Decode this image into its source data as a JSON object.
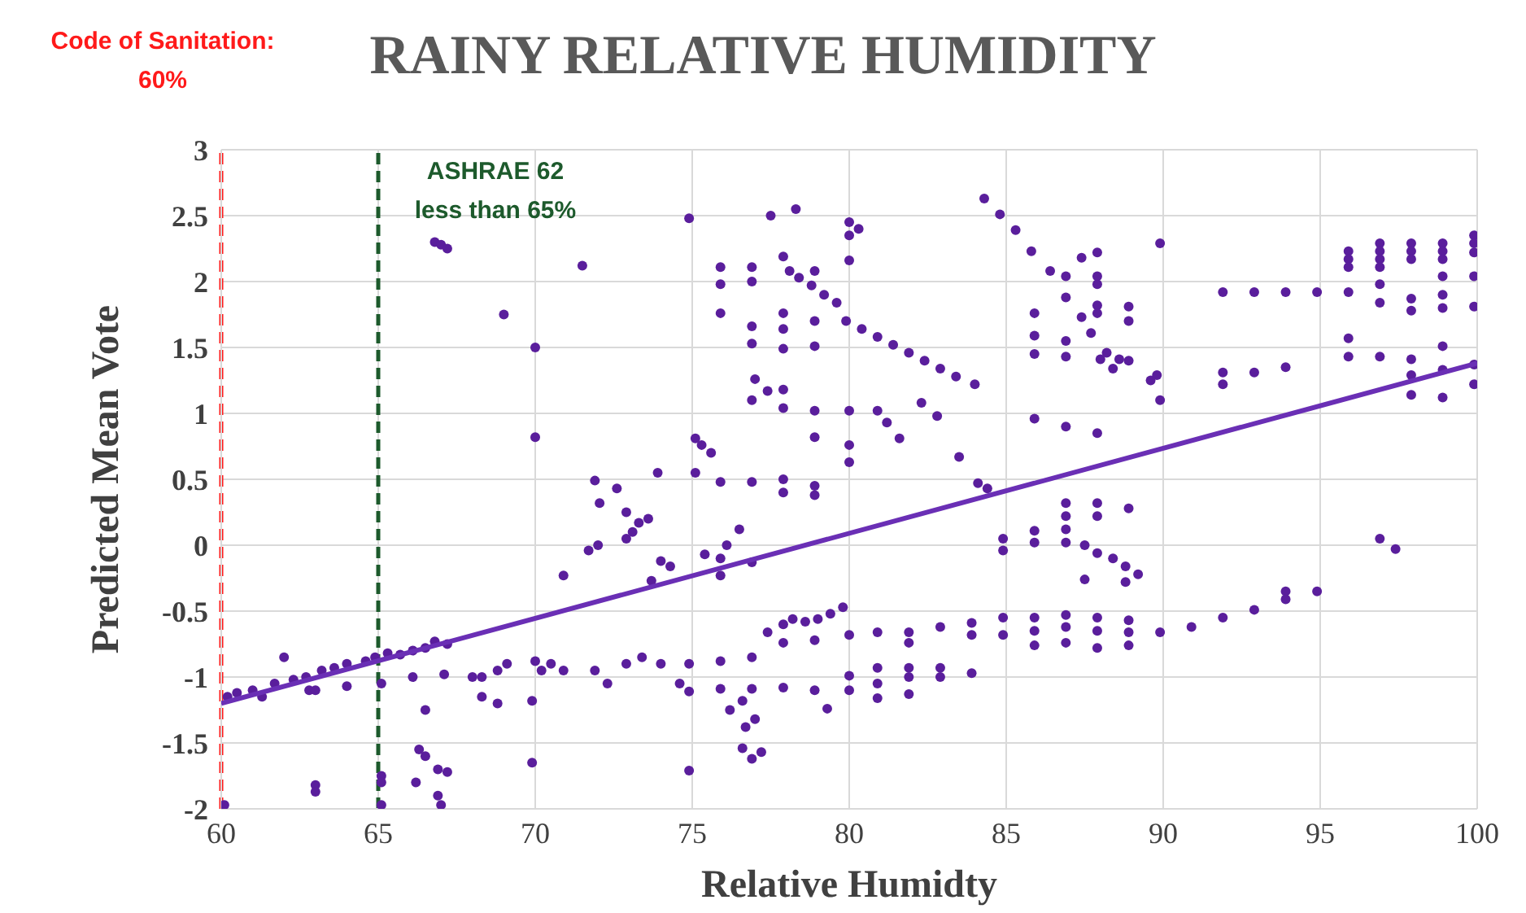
{
  "chart_data": {
    "type": "scatter",
    "title": "RAINY RELATIVE HUMIDITY",
    "xlabel": "Relative Humidty",
    "ylabel": "Predicted Mean Vote",
    "xlim": [
      60,
      100
    ],
    "xticks": [
      60,
      65,
      70,
      75,
      80,
      85,
      90,
      95,
      100
    ],
    "ylim": [
      -2,
      3
    ],
    "yticks": [
      -2,
      -1.5,
      -1,
      -0.5,
      0,
      0.5,
      1,
      1.5,
      2,
      2.5,
      3
    ],
    "grid": true,
    "ref_lines": [
      {
        "axis": "x",
        "value": 60,
        "label": "Code of Sanitation: 60%",
        "color": "#ff1a1a",
        "line_style": "dashed"
      },
      {
        "axis": "x",
        "value": 65,
        "label": "ASHRAE 62 less than 65%",
        "color": "#1d5a2c",
        "line_style": "dashed"
      }
    ],
    "series": [
      {
        "marker": "circle",
        "color": "#5a1e9c",
        "x": [
          60.2,
          60.5,
          61,
          61.3,
          61.7,
          62,
          62.3,
          62.7,
          62.8,
          63.2,
          63.6,
          64,
          64.6,
          64.9,
          65.3,
          65.7,
          66.1,
          66.5,
          66.8,
          67.2,
          63,
          64,
          65.1,
          66.1,
          67.1,
          66.5,
          66.3,
          66.5,
          66.9,
          67.2,
          66.2,
          66.9,
          67,
          63,
          63,
          65.1,
          65.1,
          65.1,
          60.1,
          66.8,
          67,
          67.2,
          69,
          70,
          70,
          71.5,
          70.9,
          71.9,
          72.05,
          72.6,
          72.9,
          71.7,
          72,
          72.9,
          73.1,
          68,
          68.3,
          68.3,
          68.8,
          68.8,
          69.1,
          70,
          69.9,
          70.2,
          70.5,
          69.9,
          70.9,
          71.9,
          72.3,
          72.9,
          74.9,
          77.5,
          78.3,
          75.9,
          75.9,
          75.9,
          76.9,
          76.9,
          76.9,
          76.9,
          76.9,
          77.9,
          77.9,
          77.9,
          77.9,
          77.9,
          78.9,
          78.9,
          78.9,
          78.9,
          78.9,
          78.1,
          78.4,
          78.8,
          79.2,
          79.6,
          79.9,
          80.4,
          80.9,
          81.4,
          81.9,
          82.4,
          82.9,
          83.4,
          84,
          80,
          80,
          80,
          80.3,
          80,
          80,
          80,
          77,
          77.4,
          77.9,
          80.9,
          81.2,
          81.6,
          82.3,
          82.8,
          83.5,
          84.1,
          84.4,
          75.1,
          75.3,
          75.6,
          75.1,
          73.9,
          75.9,
          76.9,
          77.9,
          77.9,
          78.9,
          78.9,
          73.3,
          73.6,
          74,
          74.3,
          73.7,
          75.4,
          75.9,
          76.1,
          76.5,
          75.9,
          76.9,
          73.4,
          74,
          74.6,
          74.9,
          74.9,
          75.9,
          75.9,
          76.2,
          76.9,
          76.9,
          76.6,
          77,
          76.7,
          76.6,
          77.2,
          76.9,
          74.9,
          77.4,
          77.9,
          78.2,
          78.6,
          79,
          79.4,
          79.8,
          77.9,
          77.9,
          78.9,
          78.9,
          79.3,
          80,
          80,
          80,
          80.9,
          80.9,
          80.9,
          80.9,
          81.9,
          81.9,
          81.9,
          81.9,
          81.9,
          82.9,
          82.9,
          82.9,
          83.9,
          83.9,
          83.9,
          84.9,
          84.9,
          85.9,
          85.9,
          85.9,
          84.9,
          84.9,
          85.9,
          85.9,
          84.3,
          84.8,
          85.3,
          85.8,
          86.4,
          86.9,
          87.4,
          87.7,
          85.9,
          85.9,
          85.9,
          85.9,
          86.9,
          86.9,
          86.9,
          86.9,
          87.9,
          87.9,
          87.9,
          87.9,
          87.9,
          87.9,
          87.4,
          88,
          88.2,
          88.4,
          88.6,
          88.9,
          88.9,
          88.9,
          89.8,
          89.9,
          89.9,
          89.6,
          91.9,
          92.9,
          93.9,
          94.9,
          91.9,
          91.9,
          92.9,
          93.9,
          95.9,
          95.9,
          95.9,
          95.9,
          95.9,
          95.9,
          96.9,
          96.9,
          96.9,
          96.9,
          96.9,
          96.9,
          96.9,
          97.9,
          97.9,
          97.9,
          97.9,
          97.9,
          97.9,
          97.9,
          97.9,
          98.9,
          98.9,
          98.9,
          98.9,
          98.9,
          98.9,
          98.9,
          98.9,
          98.9,
          99.9,
          99.9,
          99.9,
          99.9,
          99.9,
          99.9,
          99.9,
          86.9,
          86.9,
          86.9,
          86.9,
          87.9,
          87.9,
          88.9,
          87.5,
          87.9,
          88.4,
          88.8,
          89.2,
          87.5,
          88.8,
          96.9,
          97.4,
          86.9,
          86.9,
          86.9,
          87.9,
          87.9,
          87.9,
          88.9,
          88.9,
          88.9,
          89.9,
          90.9,
          91.9,
          92.9,
          93.9,
          93.9,
          94.9
        ],
        "values": [
          -1.15,
          -1.12,
          -1.1,
          -1.15,
          -1.05,
          -0.85,
          -1.02,
          -1,
          -1.1,
          -0.95,
          -0.93,
          -0.9,
          -0.88,
          -0.85,
          -0.82,
          -0.83,
          -0.8,
          -0.78,
          -0.73,
          -0.75,
          -1.1,
          -1.07,
          -1.05,
          -1,
          -0.98,
          -1.25,
          -1.55,
          -1.6,
          -1.7,
          -1.72,
          -1.8,
          -1.9,
          -1.97,
          -1.82,
          -1.87,
          -1.75,
          -1.8,
          -1.97,
          -1.97,
          2.3,
          2.28,
          2.25,
          1.75,
          1.5,
          0.82,
          2.12,
          -0.23,
          0.49,
          0.32,
          0.43,
          0.25,
          -0.04,
          0,
          0.05,
          0.1,
          -1,
          -1,
          -1.15,
          -0.95,
          -1.2,
          -0.9,
          -0.88,
          -1.18,
          -0.95,
          -0.9,
          -1.65,
          -0.95,
          -0.95,
          -1.05,
          -0.9,
          2.48,
          2.5,
          2.55,
          2.11,
          1.98,
          1.76,
          2.11,
          2,
          1.66,
          1.53,
          1.1,
          2.19,
          1.76,
          1.64,
          1.49,
          1.04,
          2.08,
          1.7,
          1.51,
          1.02,
          0.82,
          2.08,
          2.03,
          1.97,
          1.9,
          1.84,
          1.7,
          1.64,
          1.58,
          1.52,
          1.46,
          1.4,
          1.34,
          1.28,
          1.22,
          2.45,
          2.35,
          2.16,
          2.4,
          1.02,
          0.76,
          0.63,
          1.26,
          1.17,
          1.18,
          1.02,
          0.93,
          0.81,
          1.08,
          0.98,
          0.67,
          0.47,
          0.43,
          0.81,
          0.76,
          0.7,
          0.55,
          0.55,
          0.48,
          0.48,
          0.5,
          0.4,
          0.45,
          0.38,
          0.17,
          0.2,
          -0.12,
          -0.16,
          -0.27,
          -0.07,
          -0.1,
          0,
          0.12,
          -0.23,
          -0.13,
          -0.85,
          -0.9,
          -1.05,
          -0.9,
          -1.11,
          -0.88,
          -1.09,
          -1.25,
          -0.85,
          -1.09,
          -1.18,
          -1.32,
          -1.38,
          -1.54,
          -1.57,
          -1.62,
          -1.71,
          -0.66,
          -0.6,
          -0.56,
          -0.58,
          -0.56,
          -0.52,
          -0.47,
          -0.74,
          -1.08,
          -0.72,
          -1.1,
          -1.24,
          -0.68,
          -0.99,
          -1.1,
          -0.66,
          -0.93,
          -1.05,
          -1.16,
          -0.66,
          -0.74,
          -0.93,
          -1,
          -1.13,
          -0.62,
          -0.93,
          -1,
          -0.59,
          -0.68,
          -0.97,
          -0.55,
          -0.68,
          -0.55,
          -0.65,
          -0.76,
          0.05,
          -0.04,
          0.11,
          0.02,
          2.63,
          2.51,
          2.39,
          2.23,
          2.08,
          1.88,
          1.73,
          1.61,
          1.76,
          1.59,
          1.45,
          0.96,
          2.04,
          1.55,
          1.43,
          0.9,
          2.22,
          2.04,
          1.98,
          1.82,
          1.76,
          0.85,
          2.18,
          1.41,
          1.46,
          1.34,
          1.41,
          1.4,
          1.81,
          1.7,
          1.29,
          1.1,
          2.29,
          1.25,
          1.92,
          1.92,
          1.92,
          1.92,
          1.31,
          1.22,
          1.31,
          1.35,
          2.23,
          2.17,
          2.11,
          1.92,
          1.57,
          1.43,
          2.29,
          2.23,
          2.17,
          2.11,
          1.98,
          1.84,
          1.43,
          2.29,
          2.23,
          2.17,
          1.87,
          1.78,
          1.41,
          1.29,
          1.14,
          2.29,
          2.23,
          2.17,
          2.04,
          1.9,
          1.8,
          1.51,
          1.33,
          1.12,
          2.35,
          2.29,
          2.22,
          2.04,
          1.81,
          1.37,
          1.22,
          0.32,
          0.22,
          0.12,
          0.02,
          0.32,
          0.22,
          0.28,
          0,
          -0.06,
          -0.1,
          -0.16,
          -0.22,
          -0.26,
          -0.28,
          0.05,
          -0.03,
          -0.53,
          -0.62,
          -0.74,
          -0.55,
          -0.65,
          -0.78,
          -0.57,
          -0.66,
          -0.76,
          -0.66,
          -0.62,
          -0.55,
          -0.49,
          -0.35,
          -0.41,
          -0.35
        ]
      },
      {
        "type": "line",
        "marker": "none",
        "color": "#6a2fb5",
        "x": [
          60,
          100
        ],
        "values": [
          -1.2,
          1.38
        ]
      }
    ]
  }
}
